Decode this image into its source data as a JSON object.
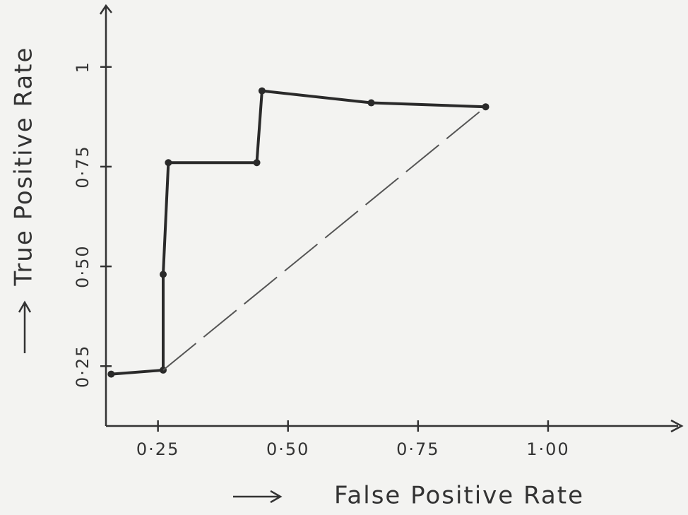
{
  "chart_data": {
    "type": "line",
    "x_label": "False Positive Rate",
    "y_label": "True Positive Rate",
    "xlim": [
      0.15,
      1.25
    ],
    "ylim": [
      0.1,
      1.15
    ],
    "xticks": [
      {
        "value": 0.25,
        "label": "0·25"
      },
      {
        "value": 0.5,
        "label": "0·50"
      },
      {
        "value": 0.75,
        "label": "0·75"
      },
      {
        "value": 1,
        "label": "1·00"
      }
    ],
    "yticks": [
      {
        "value": 0.25,
        "label": "0·25"
      },
      {
        "value": 0.5,
        "label": "0·50"
      },
      {
        "value": 0.75,
        "label": "0·75"
      },
      1
    ],
    "series": [
      {
        "color": "#2a2a2a",
        "markers": true,
        "dashed": false,
        "x": [
          0.16,
          0.26,
          0.26,
          0.27,
          0.44,
          0.45,
          0.66,
          0.88
        ],
        "values": [
          0.23,
          0.24,
          0.48,
          0.76,
          0.76,
          0.94,
          0.91,
          0.9
        ]
      },
      {
        "color": "#555555",
        "markers": false,
        "dashed": true,
        "x": [
          0.26,
          0.88
        ],
        "values": [
          0.24,
          0.9
        ]
      }
    ]
  }
}
